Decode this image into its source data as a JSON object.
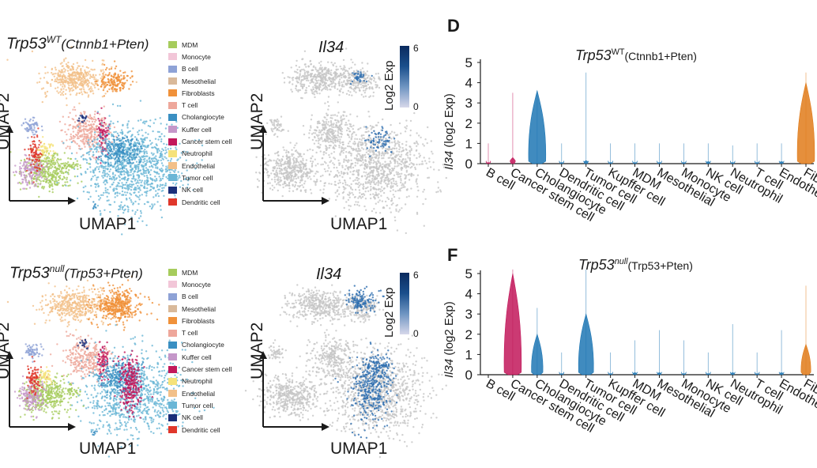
{
  "figure": {
    "panel_letters": {
      "D": "D",
      "F": "F"
    },
    "colors": {
      "axis": "#1a1a1a",
      "gray_cells": "#c6c6c6",
      "expr_blue": "#2f6fb0",
      "violin_pink": "#c2185b",
      "violin_blue": "#1f77b4",
      "violin_orange": "#e07b1a"
    }
  },
  "umap_panels": [
    {
      "id": "wt-celltype",
      "title_main": "Trp53",
      "title_sup": "WT",
      "title_rest": "(Ctnnb1+Pten)",
      "xlabel": "UMAP1",
      "ylabel": "UMAP2"
    },
    {
      "id": "null-celltype",
      "title_main": "Trp53",
      "title_sup": "null",
      "title_rest": "(Trp53+Pten)",
      "xlabel": "UMAP1",
      "ylabel": "UMAP2"
    }
  ],
  "expr_panels": [
    {
      "id": "wt-il34",
      "title": "Il34",
      "xlabel": "UMAP1",
      "ylabel": "UMAP2",
      "colorbar": {
        "label": "Log2 Exp",
        "max": "6",
        "min": "0"
      }
    },
    {
      "id": "null-il34",
      "title": "Il34",
      "xlabel": "UMAP1",
      "ylabel": "UMAP2",
      "colorbar": {
        "label": "Log2 Exp",
        "max": "6",
        "min": "0"
      }
    }
  ],
  "legend": [
    {
      "label": "MDM",
      "color": "#a6cc5c"
    },
    {
      "label": "Monocyte",
      "color": "#f2c6d8"
    },
    {
      "label": "B cell",
      "color": "#8ea2d6"
    },
    {
      "label": "Mesothelial",
      "color": "#d9b99a"
    },
    {
      "label": "Fibroblasts",
      "color": "#f0913a"
    },
    {
      "label": "T cell",
      "color": "#eea79b"
    },
    {
      "label": "Cholangiocyte",
      "color": "#3a8fc2"
    },
    {
      "label": "Kuffer cell",
      "color": "#c597c9"
    },
    {
      "label": "Cancer stem cell",
      "color": "#c2185b"
    },
    {
      "label": "Neutrophil",
      "color": "#f5e27a"
    },
    {
      "label": "Endothelial",
      "color": "#f2c089"
    },
    {
      "label": "Tumor cell",
      "color": "#6ab6d6"
    },
    {
      "label": "NK cell",
      "color": "#1a2f7a"
    },
    {
      "label": "Dendritic cell",
      "color": "#e0372b"
    }
  ],
  "chart_data": [
    {
      "type": "violin",
      "panel": "D",
      "title_main": "Trp53",
      "title_sup": "WT",
      "title_rest": "(Ctnnb1+Pten)",
      "ylabel_gene": "Il34",
      "ylabel_rest": " (log2 Exp)",
      "ylim": [
        0,
        5
      ],
      "yticks": [
        0,
        1,
        2,
        3,
        4,
        5
      ],
      "categories": [
        "B cell",
        "Cancer stem cell",
        "Cholangiocyte",
        "Dendritic cell",
        "Tumor cell",
        "Kupffer cell",
        "MDM",
        "Mesothelial",
        "Monocyte",
        "NK cell",
        "Neutrophil",
        "T cell",
        "Endothelial",
        "Fibroblasts"
      ],
      "max_values": [
        1.0,
        3.5,
        3.6,
        1.0,
        4.5,
        1.0,
        1.0,
        1.0,
        1.0,
        1.0,
        0.9,
        1.0,
        1.0,
        4.5
      ],
      "body_height": [
        0.05,
        0.3,
        3.6,
        0.05,
        0.15,
        0.05,
        0.05,
        0.05,
        0.05,
        0.1,
        0.05,
        0.05,
        0.1,
        4.0
      ],
      "body_color": [
        "#c2185b",
        "#c2185b",
        "#1f77b4",
        "#1f77b4",
        "#1f77b4",
        "#1f77b4",
        "#1f77b4",
        "#1f77b4",
        "#1f77b4",
        "#1f77b4",
        "#1f77b4",
        "#1f77b4",
        "#1f77b4",
        "#e07b1a"
      ]
    },
    {
      "type": "violin",
      "panel": "F",
      "title_main": "Trp53",
      "title_sup": "null",
      "title_rest": "(Trp53+Pten)",
      "ylabel_gene": "Il34",
      "ylabel_rest": " (log2 Exp)",
      "ylim": [
        0,
        5
      ],
      "yticks": [
        0,
        1,
        2,
        3,
        4,
        5
      ],
      "categories": [
        "B cell",
        "Cancer stem cell",
        "Cholangiocyte",
        "Dendritic cell",
        "Tumor cell",
        "Kupffer cell",
        "MDM",
        "Mesothelial",
        "Monocyte",
        "NK cell",
        "Neutrophil",
        "T cell",
        "Endothelial",
        "Fibroblasts"
      ],
      "max_values": [
        0.0,
        5.2,
        3.3,
        1.1,
        5.2,
        1.1,
        1.7,
        2.2,
        1.7,
        1.1,
        2.5,
        1.1,
        2.2,
        4.4
      ],
      "body_height": [
        0.0,
        5.0,
        2.0,
        0.05,
        3.0,
        0.05,
        0.1,
        0.1,
        0.05,
        0.05,
        0.1,
        0.05,
        0.1,
        1.5
      ],
      "body_color": [
        "#c2185b",
        "#c2185b",
        "#1f77b4",
        "#1f77b4",
        "#1f77b4",
        "#1f77b4",
        "#1f77b4",
        "#1f77b4",
        "#1f77b4",
        "#1f77b4",
        "#1f77b4",
        "#1f77b4",
        "#1f77b4",
        "#e07b1a"
      ]
    }
  ]
}
